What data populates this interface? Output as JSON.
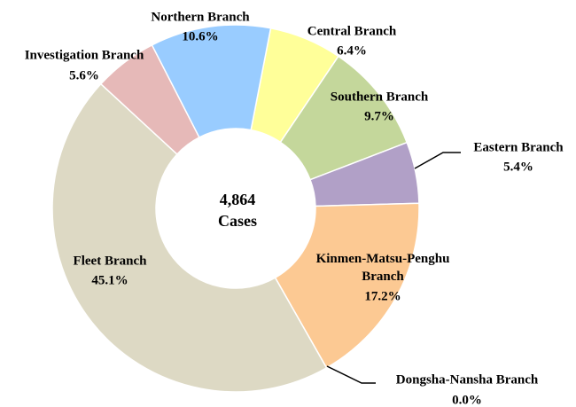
{
  "chart_data": {
    "type": "donut",
    "categories": [
      "Central Branch",
      "Southern Branch",
      "Eastern Branch",
      "Kinmen-Matsu-Penghu Branch",
      "Dongsha-Nansha Branch",
      "Fleet Branch",
      "Investigation Branch",
      "Northern Branch"
    ],
    "values": [
      6.4,
      9.7,
      5.4,
      17.2,
      0.0,
      45.1,
      5.6,
      10.6
    ],
    "value_labels": [
      "6.4%",
      "9.7%",
      "5.4%",
      "17.2%",
      "0.0%",
      "45.1%",
      "5.6%",
      "10.6%"
    ],
    "colors": [
      "#ffff99",
      "#c4d79b",
      "#b1a0c7",
      "#fcc993",
      "#f4b183",
      "#ddd9c4",
      "#e6b9b8",
      "#99ccff"
    ],
    "center_text": [
      "4,864",
      "Cases"
    ]
  }
}
